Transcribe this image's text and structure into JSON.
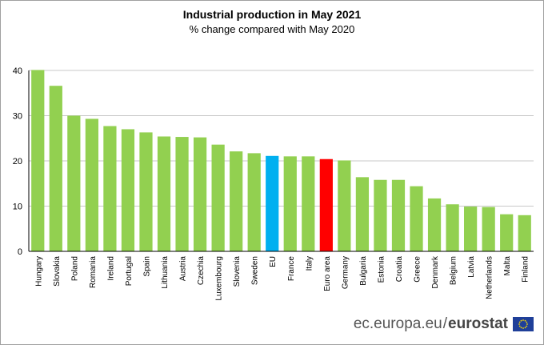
{
  "chart_data": {
    "type": "bar",
    "title": "Industrial production in May 2021",
    "subtitle": "% change compared with May 2020",
    "categories": [
      "Hungary",
      "Slovakia",
      "Poland",
      "Romania",
      "Ireland",
      "Portugal",
      "Spain",
      "Lithuania",
      "Austria",
      "Czechia",
      "Luxembourg",
      "Slovenia",
      "Sweden",
      "EU",
      "France",
      "Italy",
      "Euro area",
      "Germany",
      "Bulgaria",
      "Estonia",
      "Croatia",
      "Greece",
      "Denmark",
      "Belgium",
      "Latvia",
      "Netherlands",
      "Malta",
      "Finland"
    ],
    "values": [
      40.1,
      36.6,
      30.0,
      29.3,
      27.7,
      27.0,
      26.3,
      25.4,
      25.3,
      25.2,
      23.6,
      22.1,
      21.7,
      21.1,
      21.0,
      21.0,
      20.4,
      20.1,
      16.4,
      15.8,
      15.8,
      14.4,
      11.7,
      10.4,
      9.9,
      9.8,
      8.2,
      8.0
    ],
    "colors": {
      "default": "#92D050",
      "EU": "#00B0F0",
      "Euro area": "#FF0000"
    },
    "ylim": [
      0,
      40
    ],
    "yticks": [
      "0",
      "10",
      "20",
      "30",
      "40"
    ],
    "grid": true,
    "xlabel": "",
    "ylabel": ""
  },
  "footer": {
    "site": "ec.europa.eu",
    "separator": "/",
    "brand": "eurostat",
    "flag_icon": "eu-flag-icon"
  }
}
